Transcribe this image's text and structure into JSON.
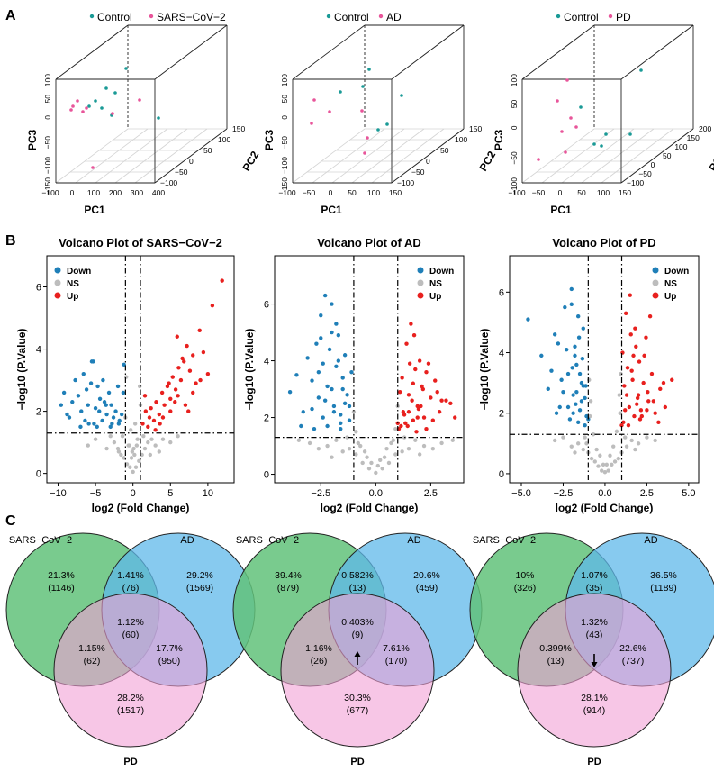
{
  "panel_labels": {
    "a": "A",
    "b": "B",
    "c": "C"
  },
  "colors": {
    "control": "#1a9a96",
    "case": "#e8559a",
    "down": "#1f7fb8",
    "ns": "#bdbdbd",
    "up": "#e8201e",
    "venn_sars": "#62c27a",
    "venn_ad": "#5fb8ea",
    "venn_pd": "#f2a0d6"
  },
  "pca": [
    {
      "legend": [
        "Control",
        "SARS−CoV−2"
      ],
      "xlabel": "PC1",
      "ylabel": "PC2",
      "zlabel": "PC3",
      "x_ticks": [
        "−100",
        "0",
        "100",
        "200",
        "300",
        "400"
      ],
      "y_ticks": [
        "−100",
        "−50",
        "0",
        "50",
        "100",
        "150"
      ],
      "z_ticks": [
        "−150",
        "−100",
        "−50",
        "0",
        "50",
        "100"
      ]
    },
    {
      "legend": [
        "Control",
        "AD"
      ],
      "xlabel": "PC1",
      "ylabel": "PC2",
      "zlabel": "PC3",
      "x_ticks": [
        "−100",
        "−50",
        "0",
        "50",
        "100",
        "150"
      ],
      "y_ticks": [
        "−100",
        "−50",
        "0",
        "50",
        "100",
        "150"
      ],
      "z_ticks": [
        "−150",
        "−100",
        "−50",
        "0",
        "50",
        "100"
      ]
    },
    {
      "legend": [
        "Control",
        "PD"
      ],
      "xlabel": "PC1",
      "ylabel": "PC2",
      "zlabel": "PC3",
      "x_ticks": [
        "−100",
        "−50",
        "0",
        "50",
        "100",
        "150"
      ],
      "y_ticks": [
        "−100",
        "−50",
        "0",
        "50",
        "100",
        "150",
        "200"
      ],
      "z_ticks": [
        "−100",
        "−50",
        "0",
        "50",
        "100"
      ]
    }
  ],
  "chart_data": [
    {
      "type": "scatter",
      "title": "Volcano Plot of SARS−CoV−2",
      "xlabel": "log2 (Fold Change)",
      "ylabel": "−log10 (P.Value)",
      "xlim": [
        -11.5,
        13.5
      ],
      "ylim": [
        -0.3,
        7
      ],
      "x_ticks": [
        -10,
        -5,
        0,
        5,
        10
      ],
      "y_ticks": [
        0,
        2,
        4,
        6
      ],
      "thresholds": {
        "log2fc": [
          -1,
          1
        ],
        "neglog10p": 1.3
      },
      "legend": [
        "Down",
        "NS",
        "Up"
      ],
      "series": [
        {
          "name": "Down",
          "x": [
            -9.6,
            -9.2,
            -8.8,
            -8.1,
            -7.7,
            -7.3,
            -6.9,
            -6.6,
            -6.2,
            -5.9,
            -5.6,
            -5.3,
            -5.0,
            -4.7,
            -4.4,
            -4.1,
            -3.8,
            -3.5,
            -3.2,
            -2.9,
            -2.6,
            -2.3,
            -1.9,
            -1.5,
            -1.2,
            -8.5,
            -7.0,
            -6.0,
            -5.5,
            -4.8,
            -4.0,
            -3.0,
            -2.0,
            -1.3,
            -6.4,
            -5.2,
            -4.5,
            -3.6,
            -2.8,
            -1.8
          ],
          "y": [
            2.2,
            2.6,
            1.9,
            2.3,
            3.0,
            2.5,
            2.0,
            3.2,
            2.7,
            1.6,
            2.9,
            3.6,
            2.1,
            2.8,
            2.4,
            1.7,
            2.3,
            1.9,
            2.6,
            2.2,
            1.8,
            2.0,
            1.6,
            1.9,
            3.5,
            1.8,
            1.5,
            2.2,
            3.6,
            1.5,
            3.0,
            1.5,
            2.8,
            2.6,
            1.7,
            1.6,
            2.0,
            2.2,
            1.6,
            1.7
          ]
        },
        {
          "name": "Up",
          "x": [
            1.3,
            1.7,
            2.0,
            2.4,
            2.8,
            3.1,
            3.5,
            3.9,
            4.2,
            4.6,
            5.0,
            5.3,
            5.7,
            6.1,
            6.4,
            6.8,
            7.2,
            7.6,
            8.0,
            8.4,
            8.9,
            9.4,
            10.0,
            10.6,
            11.9,
            3.0,
            4.0,
            5.0,
            6.0,
            7.0,
            8.0,
            9.0,
            2.2,
            3.6,
            4.8,
            5.6,
            6.6,
            7.4,
            1.6,
            5.9
          ],
          "y": [
            1.6,
            2.0,
            1.5,
            2.1,
            1.7,
            2.3,
            1.9,
            2.6,
            2.2,
            2.8,
            2.4,
            3.1,
            2.7,
            3.4,
            3.0,
            3.6,
            4.1,
            3.3,
            2.6,
            2.9,
            4.6,
            3.9,
            3.2,
            5.4,
            6.2,
            1.4,
            1.8,
            2.0,
            2.5,
            2.2,
            3.8,
            3.0,
            1.8,
            1.6,
            2.9,
            2.3,
            3.7,
            2.0,
            2.5,
            4.4
          ]
        },
        {
          "name": "NS",
          "x": [
            -2.5,
            -2.0,
            -1.6,
            -1.2,
            -0.8,
            -0.4,
            0.0,
            0.4,
            0.8,
            1.2,
            1.6,
            2.0,
            2.5,
            3.0,
            -3.0,
            -3.5,
            4.0,
            -0.6,
            0.6,
            -0.2,
            0.2,
            -1.0,
            1.0,
            -0.9,
            0.9,
            -1.4,
            1.4,
            -5.0,
            -6.0,
            5.0,
            6.0,
            0.3,
            -0.3,
            -0.1,
            0.1,
            0.5,
            -0.5,
            -1.9,
            2.3,
            3.5
          ],
          "y": [
            1.0,
            0.8,
            0.6,
            0.5,
            0.3,
            0.2,
            0.05,
            0.2,
            0.4,
            0.6,
            0.8,
            1.0,
            1.1,
            0.9,
            1.2,
            0.8,
            1.1,
            0.9,
            1.1,
            0.5,
            0.6,
            1.8,
            2.2,
            3.1,
            2.8,
            1.2,
            1.2,
            1.1,
            0.9,
            1.0,
            1.2,
            1.6,
            1.4,
            0.7,
            0.8,
            0.9,
            0.9,
            0.7,
            0.6,
            0.7
          ]
        }
      ]
    },
    {
      "type": "scatter",
      "title": "Volcano Plot of AD",
      "xlabel": "log2 (Fold Change)",
      "ylabel": "−log10 (P.Value)",
      "xlim": [
        -4.6,
        4.0
      ],
      "ylim": [
        -0.3,
        7.7
      ],
      "x_ticks": [
        -2.5,
        0.0,
        2.5
      ],
      "y_ticks": [
        0,
        2,
        4,
        6
      ],
      "thresholds": {
        "log2fc": [
          -1,
          1
        ],
        "neglog10p": 1.3
      },
      "legend": [
        "Down",
        "NS",
        "Up"
      ],
      "series": [
        {
          "name": "Down",
          "x": [
            -3.9,
            -3.6,
            -3.3,
            -3.1,
            -2.9,
            -2.7,
            -2.6,
            -2.5,
            -2.4,
            -2.3,
            -2.2,
            -2.1,
            -2.0,
            -1.9,
            -1.8,
            -1.7,
            -1.6,
            -1.5,
            -1.4,
            -1.3,
            -1.2,
            -1.1,
            -2.8,
            -2.5,
            -2.2,
            -2.0,
            -1.8,
            -1.6,
            -1.4,
            -2.4,
            -2.0,
            -1.7,
            -3.4,
            -2.9,
            -1.5,
            -1.2,
            -2.6,
            -2.3,
            -1.9,
            -1.6
          ],
          "y": [
            2.9,
            3.5,
            2.2,
            4.1,
            3.3,
            4.6,
            2.7,
            5.6,
            3.9,
            6.3,
            3.1,
            4.4,
            5.0,
            2.4,
            3.8,
            4.9,
            2.1,
            3.4,
            4.2,
            2.8,
            1.9,
            3.6,
            1.6,
            4.8,
            1.7,
            6.0,
            5.3,
            1.8,
            2.5,
            2.0,
            3.0,
            4.0,
            1.7,
            2.3,
            3.0,
            2.4,
            3.6,
            2.6,
            2.2,
            1.6
          ]
        },
        {
          "name": "Up",
          "x": [
            1.05,
            1.2,
            1.3,
            1.4,
            1.5,
            1.6,
            1.7,
            1.8,
            1.9,
            2.0,
            2.1,
            2.2,
            2.3,
            2.5,
            2.7,
            2.9,
            3.2,
            3.6,
            1.1,
            1.35,
            1.55,
            1.75,
            1.95,
            2.15,
            2.4,
            1.25,
            1.45,
            1.65,
            1.85,
            2.05,
            2.6,
            3.0,
            1.15,
            1.5,
            1.9,
            2.3,
            1.0,
            1.7,
            2.8,
            3.4
          ],
          "y": [
            1.6,
            3.4,
            2.1,
            4.6,
            2.8,
            5.3,
            1.9,
            3.7,
            2.4,
            4.0,
            3.1,
            2.0,
            3.6,
            2.7,
            3.3,
            2.2,
            2.6,
            2.0,
            2.9,
            1.8,
            3.9,
            4.9,
            2.3,
            3.0,
            3.9,
            2.2,
            1.7,
            2.6,
            1.5,
            2.4,
            1.9,
            2.6,
            1.7,
            2.2,
            2.0,
            1.6,
            1.8,
            3.2,
            2.9,
            2.5
          ]
        },
        {
          "name": "NS",
          "x": [
            -3.5,
            -3.0,
            -2.6,
            -2.2,
            -1.8,
            -1.5,
            -1.2,
            -0.9,
            -0.6,
            -0.3,
            0.0,
            0.3,
            0.6,
            0.9,
            1.2,
            1.5,
            1.8,
            2.2,
            2.6,
            3.0,
            3.5,
            -0.8,
            0.8,
            -0.5,
            0.5,
            -0.2,
            0.2,
            -1.0,
            1.0,
            -0.9,
            0.9,
            -0.7,
            0.7,
            -2.0,
            2.0,
            -1.3,
            1.3,
            -0.4,
            0.4,
            0.1
          ],
          "y": [
            1.2,
            1.1,
            0.9,
            1.0,
            1.2,
            0.8,
            0.9,
            0.7,
            0.4,
            0.2,
            0.05,
            0.2,
            0.4,
            0.7,
            0.8,
            0.9,
            1.2,
            1.0,
            0.9,
            1.1,
            1.2,
            1.1,
            1.2,
            0.8,
            0.9,
            0.4,
            0.5,
            2.2,
            2.4,
            1.5,
            1.6,
            1.0,
            1.1,
            0.6,
            0.7,
            1.3,
            1.3,
            0.6,
            0.6,
            0.3
          ]
        }
      ]
    },
    {
      "type": "scatter",
      "title": "Volcano Plot of PD",
      "xlabel": "log2 (Fold Change)",
      "ylabel": "−log10 (P.Value)",
      "xlim": [
        -5.7,
        5.6
      ],
      "ylim": [
        -0.3,
        7.2
      ],
      "x_ticks": [
        -5.0,
        -2.5,
        0.0,
        2.5,
        5.0
      ],
      "y_ticks": [
        0,
        2,
        4,
        6
      ],
      "thresholds": {
        "log2fc": [
          -1,
          1
        ],
        "neglog10p": 1.3
      },
      "legend": [
        "Down",
        "NS",
        "Up"
      ],
      "series": [
        {
          "name": "Down",
          "x": [
            -4.6,
            -3.8,
            -3.4,
            -3.0,
            -2.7,
            -2.4,
            -2.2,
            -2.0,
            -1.9,
            -1.8,
            -1.7,
            -1.6,
            -1.5,
            -1.4,
            -1.3,
            -1.2,
            -1.1,
            -2.6,
            -2.3,
            -2.1,
            -1.95,
            -1.75,
            -1.55,
            -1.35,
            -1.15,
            -2.9,
            -2.5,
            -2.0,
            -1.8,
            -1.6,
            -1.4,
            -1.2,
            -3.2,
            -2.8,
            -1.9,
            -1.7,
            -1.5,
            -2.2,
            -1.3,
            -1.0
          ],
          "y": [
            5.1,
            3.9,
            2.8,
            4.6,
            2.2,
            5.5,
            3.3,
            6.1,
            2.6,
            4.2,
            3.6,
            5.2,
            2.1,
            3.0,
            4.8,
            2.5,
            1.9,
            3.1,
            4.1,
            1.8,
            3.5,
            2.3,
            4.5,
            3.8,
            2.9,
            2.0,
            2.7,
            5.6,
            3.9,
            1.7,
            2.4,
            1.6,
            3.4,
            4.3,
            2.0,
            2.7,
            3.3,
            2.2,
            2.9,
            1.8
          ]
        },
        {
          "name": "Up",
          "x": [
            1.05,
            1.15,
            1.25,
            1.35,
            1.45,
            1.55,
            1.65,
            1.75,
            1.85,
            1.95,
            2.05,
            2.15,
            2.3,
            2.45,
            2.6,
            2.8,
            3.0,
            3.3,
            3.6,
            4.0,
            1.1,
            1.3,
            1.5,
            1.7,
            1.9,
            2.1,
            2.35,
            2.55,
            1.2,
            1.4,
            1.6,
            1.8,
            2.0,
            2.2,
            2.5,
            2.9,
            3.2,
            1.0,
            2.7,
            3.5
          ],
          "y": [
            4.0,
            2.9,
            5.3,
            3.5,
            2.2,
            4.6,
            3.1,
            1.9,
            4.2,
            2.5,
            3.7,
            2.1,
            3.0,
            4.5,
            2.4,
            3.3,
            2.0,
            2.8,
            2.2,
            3.1,
            1.7,
            2.6,
            5.9,
            3.9,
            2.3,
            1.8,
            3.9,
            2.7,
            2.1,
            1.6,
            3.4,
            4.8,
            2.6,
            1.9,
            2.1,
            2.4,
            1.7,
            1.6,
            5.2,
            3.0
          ]
        },
        {
          "name": "NS",
          "x": [
            -3.0,
            -2.5,
            -2.0,
            -1.6,
            -1.3,
            -1.0,
            -0.8,
            -0.6,
            -0.4,
            -0.2,
            0.0,
            0.2,
            0.4,
            0.6,
            0.8,
            1.0,
            1.3,
            1.6,
            2.0,
            2.5,
            3.0,
            -0.9,
            0.9,
            -0.7,
            0.7,
            -0.5,
            0.5,
            -0.3,
            0.3,
            -0.1,
            0.1,
            -1.2,
            1.2,
            -1.8,
            1.8,
            -0.95,
            0.95,
            -0.85,
            0.85,
            -1.1
          ],
          "y": [
            1.1,
            1.2,
            0.9,
            1.0,
            0.8,
            0.7,
            0.5,
            0.4,
            0.25,
            0.1,
            0.05,
            0.1,
            0.3,
            0.4,
            0.5,
            0.7,
            0.9,
            1.1,
            1.0,
            1.2,
            1.1,
            1.9,
            2.0,
            1.3,
            1.4,
            0.8,
            0.9,
            0.6,
            0.6,
            0.3,
            0.3,
            1.2,
            1.2,
            0.7,
            0.8,
            3.1,
            3.3,
            2.4,
            2.6,
            1.0
          ]
        }
      ]
    }
  ],
  "venn": [
    {
      "labels": {
        "a": "SARS−CoV−2",
        "b": "AD",
        "c": "PD"
      },
      "regions": {
        "a_only": [
          "21.3%",
          "(1146)"
        ],
        "b_only": [
          "29.2%",
          "(1569)"
        ],
        "c_only": [
          "28.2%",
          "(1517)"
        ],
        "ab": [
          "1.41%",
          "(76)"
        ],
        "ac": [
          "1.15%",
          "(62)"
        ],
        "bc": [
          "17.7%",
          "(950)"
        ],
        "abc": [
          "1.12%",
          "(60)"
        ]
      },
      "arrow": "none"
    },
    {
      "labels": {
        "a": "SARS−CoV−2",
        "b": "AD",
        "c": "PD"
      },
      "regions": {
        "a_only": [
          "39.4%",
          "(879)"
        ],
        "b_only": [
          "20.6%",
          "(459)"
        ],
        "c_only": [
          "30.3%",
          "(677)"
        ],
        "ab": [
          "0.582%",
          "(13)"
        ],
        "ac": [
          "1.16%",
          "(26)"
        ],
        "bc": [
          "7.61%",
          "(170)"
        ],
        "abc": [
          "0.403%",
          "(9)"
        ]
      },
      "arrow": "up"
    },
    {
      "labels": {
        "a": "SARS−CoV−2",
        "b": "AD",
        "c": "PD"
      },
      "regions": {
        "a_only": [
          "10%",
          "(326)"
        ],
        "b_only": [
          "36.5%",
          "(1189)"
        ],
        "c_only": [
          "28.1%",
          "(914)"
        ],
        "ab": [
          "1.07%",
          "(35)"
        ],
        "ac": [
          "0.399%",
          "(13)"
        ],
        "bc": [
          "22.6%",
          "(737)"
        ],
        "abc": [
          "1.32%",
          "(43)"
        ]
      },
      "arrow": "down"
    }
  ]
}
